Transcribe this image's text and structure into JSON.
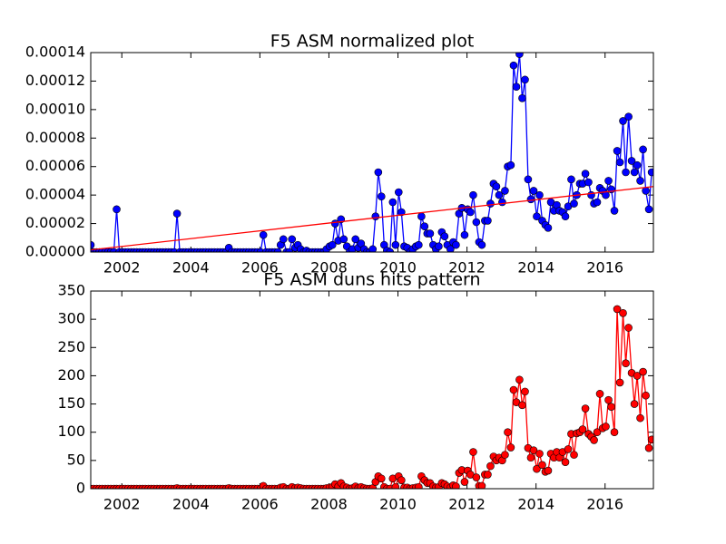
{
  "chart_data": [
    {
      "type": "line",
      "title": "F5 ASM normalized plot",
      "x": [
        2001.1,
        2001.18,
        2001.27,
        2001.35,
        2001.43,
        2001.52,
        2001.6,
        2001.68,
        2001.77,
        2001.85,
        2001.93,
        2002.02,
        2002.1,
        2002.18,
        2002.27,
        2002.35,
        2002.43,
        2002.52,
        2002.6,
        2002.68,
        2002.77,
        2002.85,
        2002.93,
        2003.02,
        2003.1,
        2003.18,
        2003.27,
        2003.35,
        2003.43,
        2003.52,
        2003.6,
        2003.68,
        2003.77,
        2003.85,
        2003.93,
        2004.02,
        2004.1,
        2004.18,
        2004.27,
        2004.35,
        2004.43,
        2004.52,
        2004.6,
        2004.68,
        2004.77,
        2004.85,
        2004.93,
        2005.02,
        2005.1,
        2005.18,
        2005.27,
        2005.35,
        2005.43,
        2005.52,
        2005.6,
        2005.68,
        2005.77,
        2005.85,
        2005.93,
        2006.02,
        2006.1,
        2006.18,
        2006.27,
        2006.35,
        2006.43,
        2006.52,
        2006.6,
        2006.68,
        2006.77,
        2006.85,
        2006.93,
        2007.02,
        2007.1,
        2007.18,
        2007.27,
        2007.35,
        2007.43,
        2007.52,
        2007.6,
        2007.68,
        2007.77,
        2007.85,
        2007.93,
        2008.02,
        2008.1,
        2008.18,
        2008.27,
        2008.35,
        2008.43,
        2008.52,
        2008.6,
        2008.68,
        2008.77,
        2008.85,
        2008.93,
        2009.02,
        2009.1,
        2009.18,
        2009.27,
        2009.35,
        2009.43,
        2009.52,
        2009.6,
        2009.68,
        2009.77,
        2009.85,
        2009.93,
        2010.02,
        2010.1,
        2010.18,
        2010.27,
        2010.35,
        2010.43,
        2010.52,
        2010.6,
        2010.68,
        2010.77,
        2010.85,
        2010.93,
        2011.02,
        2011.1,
        2011.18,
        2011.27,
        2011.35,
        2011.43,
        2011.52,
        2011.6,
        2011.68,
        2011.77,
        2011.85,
        2011.93,
        2012.02,
        2012.1,
        2012.18,
        2012.27,
        2012.35,
        2012.43,
        2012.52,
        2012.6,
        2012.68,
        2012.77,
        2012.85,
        2012.93,
        2013.02,
        2013.1,
        2013.18,
        2013.27,
        2013.35,
        2013.43,
        2013.52,
        2013.6,
        2013.68,
        2013.77,
        2013.85,
        2013.93,
        2014.02,
        2014.1,
        2014.18,
        2014.27,
        2014.35,
        2014.43,
        2014.52,
        2014.6,
        2014.68,
        2014.77,
        2014.85,
        2014.93,
        2015.02,
        2015.1,
        2015.18,
        2015.27,
        2015.35,
        2015.43,
        2015.52,
        2015.6,
        2015.68,
        2015.77,
        2015.85,
        2015.93,
        2016.02,
        2016.1,
        2016.18,
        2016.27,
        2016.35,
        2016.43,
        2016.52,
        2016.6,
        2016.68,
        2016.77,
        2016.85,
        2016.93,
        2017.02,
        2017.1,
        2017.18,
        2017.27,
        2017.35
      ],
      "series": [
        {
          "color": "#0000ff",
          "markers": true,
          "values": [
            5e-06,
            0,
            0,
            0,
            0,
            0,
            0,
            0,
            0,
            3e-05,
            0,
            0,
            0,
            0,
            0,
            0,
            0,
            0,
            0,
            0,
            0,
            0,
            0,
            0,
            0,
            0,
            0,
            0,
            0,
            0,
            2.7e-05,
            0,
            0,
            0,
            0,
            0,
            0,
            0,
            0,
            0,
            0,
            0,
            0,
            0,
            0,
            0,
            0,
            0,
            3e-06,
            0,
            0,
            0,
            0,
            0,
            0,
            0,
            0,
            0,
            0,
            0,
            1.2e-05,
            0,
            0,
            0,
            0,
            0,
            5e-06,
            9e-06,
            0,
            0,
            9e-06,
            3e-06,
            5e-06,
            2e-06,
            0,
            1e-06,
            0,
            0,
            0,
            0,
            0,
            0,
            2e-06,
            4e-06,
            5e-06,
            2e-05,
            8e-06,
            2.3e-05,
            9e-06,
            4e-06,
            0,
            2e-06,
            9e-06,
            3e-06,
            6e-06,
            2e-06,
            0,
            0,
            2e-06,
            2.5e-05,
            5.6e-05,
            3.9e-05,
            5e-06,
            1e-06,
            0,
            3.5e-05,
            5e-06,
            4.2e-05,
            2.8e-05,
            4e-06,
            3e-06,
            0,
            2e-06,
            4e-06,
            5e-06,
            2.5e-05,
            1.8e-05,
            1.3e-05,
            1.3e-05,
            5e-06,
            2e-06,
            4e-06,
            1.4e-05,
            1.1e-05,
            5e-06,
            2e-06,
            7e-06,
            5e-06,
            2.7e-05,
            3.1e-05,
            1.2e-05,
            3e-05,
            2.8e-05,
            4e-05,
            2.1e-05,
            7e-06,
            5e-06,
            2.2e-05,
            2.2e-05,
            3.4e-05,
            4.8e-05,
            4.6e-05,
            4e-05,
            3.5e-05,
            4.3e-05,
            6e-05,
            6.1e-05,
            0.000131,
            0.000116,
            0.000139,
            0.000108,
            0.000121,
            5.1e-05,
            3.7e-05,
            4.3e-05,
            2.5e-05,
            4e-05,
            2.2e-05,
            1.9e-05,
            1.7e-05,
            3.5e-05,
            2.9e-05,
            3.3e-05,
            2.9e-05,
            2.8e-05,
            2.5e-05,
            3.2e-05,
            5.1e-05,
            3.4e-05,
            4e-05,
            4.8e-05,
            4.8e-05,
            5.5e-05,
            4.9e-05,
            4e-05,
            3.4e-05,
            3.5e-05,
            4.5e-05,
            4.3e-05,
            4e-05,
            5e-05,
            4.4e-05,
            2.9e-05,
            7.1e-05,
            6.3e-05,
            9.2e-05,
            5.6e-05,
            9.5e-05,
            6.4e-05,
            5.6e-05,
            6.1e-05,
            5e-05,
            7.2e-05,
            4.3e-05,
            3e-05,
            5.6e-05
          ]
        },
        {
          "color": "#ff0000",
          "markers": false,
          "x": [
            2001.1,
            2017.4
          ],
          "values": [
            1.5e-06,
            4.6e-05
          ]
        }
      ],
      "xlim": [
        2001.1,
        2017.4
      ],
      "xticks": [
        2002,
        2004,
        2006,
        2008,
        2010,
        2012,
        2014,
        2016
      ],
      "ylim": [
        0,
        0.00014
      ],
      "yticks": [
        {
          "value": 0,
          "label": "0.00000"
        },
        {
          "value": 2e-05,
          "label": "0.00002"
        },
        {
          "value": 4e-05,
          "label": "0.00004"
        },
        {
          "value": 6e-05,
          "label": "0.00006"
        },
        {
          "value": 8e-05,
          "label": "0.00008"
        },
        {
          "value": 0.0001,
          "label": "0.00010"
        },
        {
          "value": 0.00012,
          "label": "0.00012"
        },
        {
          "value": 0.00014,
          "label": "0.00014"
        }
      ]
    },
    {
      "type": "line",
      "title": "F5 ASM duns hits pattern",
      "x": [
        2001.1,
        2001.18,
        2001.27,
        2001.35,
        2001.43,
        2001.52,
        2001.6,
        2001.68,
        2001.77,
        2001.85,
        2001.93,
        2002.02,
        2002.1,
        2002.18,
        2002.27,
        2002.35,
        2002.43,
        2002.52,
        2002.6,
        2002.68,
        2002.77,
        2002.85,
        2002.93,
        2003.02,
        2003.1,
        2003.18,
        2003.27,
        2003.35,
        2003.43,
        2003.52,
        2003.6,
        2003.68,
        2003.77,
        2003.85,
        2003.93,
        2004.02,
        2004.1,
        2004.18,
        2004.27,
        2004.35,
        2004.43,
        2004.52,
        2004.6,
        2004.68,
        2004.77,
        2004.85,
        2004.93,
        2005.02,
        2005.1,
        2005.18,
        2005.27,
        2005.35,
        2005.43,
        2005.52,
        2005.6,
        2005.68,
        2005.77,
        2005.85,
        2005.93,
        2006.02,
        2006.1,
        2006.18,
        2006.27,
        2006.35,
        2006.43,
        2006.52,
        2006.6,
        2006.68,
        2006.77,
        2006.85,
        2006.93,
        2007.02,
        2007.1,
        2007.18,
        2007.27,
        2007.35,
        2007.43,
        2007.52,
        2007.6,
        2007.68,
        2007.77,
        2007.85,
        2007.93,
        2008.02,
        2008.1,
        2008.18,
        2008.27,
        2008.35,
        2008.43,
        2008.52,
        2008.6,
        2008.68,
        2008.77,
        2008.85,
        2008.93,
        2009.02,
        2009.1,
        2009.18,
        2009.27,
        2009.35,
        2009.43,
        2009.52,
        2009.6,
        2009.68,
        2009.77,
        2009.85,
        2009.93,
        2010.02,
        2010.1,
        2010.18,
        2010.27,
        2010.35,
        2010.43,
        2010.52,
        2010.6,
        2010.68,
        2010.77,
        2010.85,
        2010.93,
        2011.02,
        2011.1,
        2011.18,
        2011.27,
        2011.35,
        2011.43,
        2011.52,
        2011.6,
        2011.68,
        2011.77,
        2011.85,
        2011.93,
        2012.02,
        2012.1,
        2012.18,
        2012.27,
        2012.35,
        2012.43,
        2012.52,
        2012.6,
        2012.68,
        2012.77,
        2012.85,
        2012.93,
        2013.02,
        2013.1,
        2013.18,
        2013.27,
        2013.35,
        2013.43,
        2013.52,
        2013.6,
        2013.68,
        2013.77,
        2013.85,
        2013.93,
        2014.02,
        2014.1,
        2014.18,
        2014.27,
        2014.35,
        2014.43,
        2014.52,
        2014.6,
        2014.68,
        2014.77,
        2014.85,
        2014.93,
        2015.02,
        2015.1,
        2015.18,
        2015.27,
        2015.35,
        2015.43,
        2015.52,
        2015.6,
        2015.68,
        2015.77,
        2015.85,
        2015.93,
        2016.02,
        2016.1,
        2016.18,
        2016.27,
        2016.35,
        2016.43,
        2016.52,
        2016.6,
        2016.68,
        2016.77,
        2016.85,
        2016.93,
        2017.02,
        2017.1,
        2017.18,
        2017.27,
        2017.35
      ],
      "series": [
        {
          "color": "#ff0000",
          "markers": true,
          "values": [
            0,
            0,
            0,
            0,
            0,
            0,
            0,
            0,
            0,
            0,
            0,
            0,
            0,
            0,
            0,
            0,
            0,
            0,
            0,
            0,
            0,
            0,
            0,
            0,
            0,
            0,
            0,
            0,
            0,
            0,
            1,
            0,
            0,
            0,
            0,
            0,
            0,
            0,
            0,
            0,
            0,
            0,
            0,
            0,
            0,
            0,
            0,
            0,
            1,
            0,
            0,
            0,
            0,
            0,
            0,
            0,
            0,
            0,
            0,
            0,
            5,
            0,
            0,
            0,
            0,
            0,
            2,
            3,
            0,
            0,
            3,
            1,
            2,
            1,
            0,
            0,
            0,
            0,
            0,
            0,
            0,
            0,
            1,
            2,
            3,
            8,
            4,
            10,
            4,
            2,
            0,
            1,
            4,
            1,
            3,
            1,
            0,
            0,
            1,
            12,
            22,
            18,
            3,
            0,
            0,
            18,
            3,
            22,
            15,
            2,
            2,
            0,
            1,
            2,
            3,
            22,
            15,
            10,
            10,
            4,
            2,
            3,
            10,
            8,
            4,
            2,
            6,
            4,
            28,
            33,
            12,
            32,
            25,
            65,
            20,
            5,
            5,
            25,
            25,
            40,
            57,
            50,
            55,
            50,
            60,
            100,
            73,
            175,
            153,
            193,
            148,
            172,
            72,
            55,
            68,
            35,
            62,
            42,
            30,
            32,
            62,
            55,
            65,
            55,
            65,
            47,
            70,
            97,
            60,
            98,
            100,
            105,
            142,
            97,
            92,
            86,
            100,
            168,
            107,
            110,
            157,
            145,
            100,
            318,
            188,
            311,
            222,
            285,
            205,
            150,
            200,
            125,
            207,
            165,
            72,
            87
          ]
        }
      ],
      "xlim": [
        2001.1,
        2017.4
      ],
      "xticks": [
        2002,
        2004,
        2006,
        2008,
        2010,
        2012,
        2014,
        2016
      ],
      "ylim": [
        0,
        350
      ],
      "yticks": [
        0,
        50,
        100,
        150,
        200,
        250,
        300,
        350
      ]
    }
  ]
}
